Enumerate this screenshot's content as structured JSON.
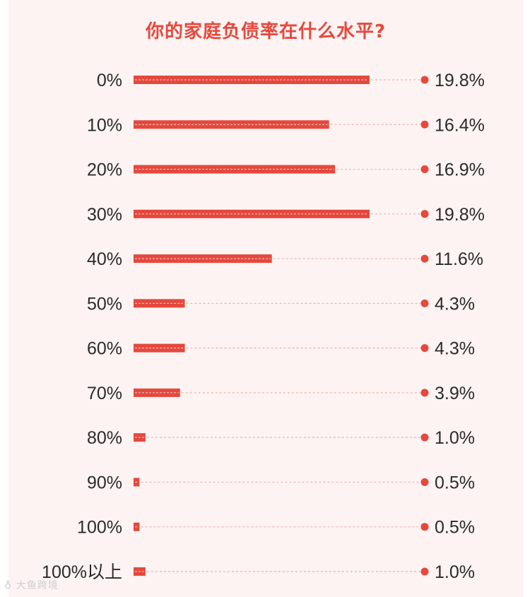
{
  "colors": {
    "accent": "#e5483d",
    "background": "#fcf3f2",
    "dotted_line": "#efb3ad",
    "text": "#2b2b2b"
  },
  "watermark": "大鱼跨境",
  "chart_data": {
    "type": "bar",
    "orientation": "horizontal",
    "title": "你的家庭负债率在什么水平?",
    "categories": [
      "0%",
      "10%",
      "20%",
      "30%",
      "40%",
      "50%",
      "60%",
      "70%",
      "80%",
      "90%",
      "100%",
      "100%以上"
    ],
    "values": [
      19.8,
      16.4,
      16.9,
      19.8,
      11.6,
      4.3,
      4.3,
      3.9,
      1.0,
      0.5,
      0.5,
      1.0
    ],
    "value_labels": [
      "19.8%",
      "16.4%",
      "16.9%",
      "19.8%",
      "11.6%",
      "4.3%",
      "4.3%",
      "3.9%",
      "1.0%",
      "0.5%",
      "0.5%",
      "1.0%"
    ],
    "xlim": [
      0,
      19.8
    ],
    "grid": false,
    "legend": "none"
  }
}
